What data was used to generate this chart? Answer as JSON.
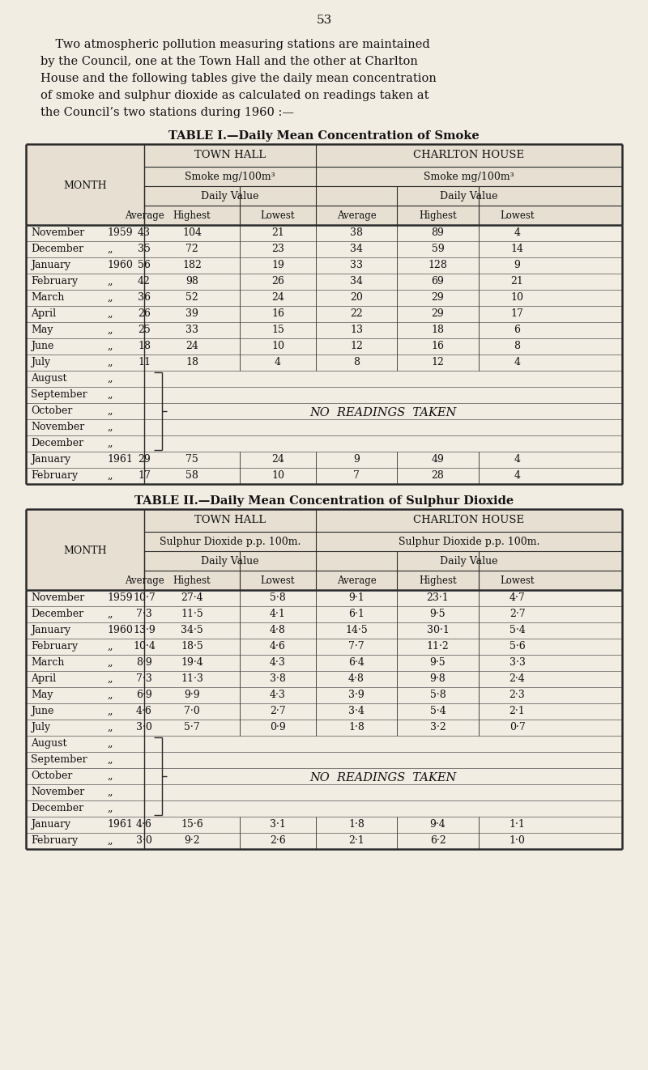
{
  "page_number": "53",
  "intro_text": [
    "    Two atmospheric pollution measuring stations are maintained",
    "by the Council, one at the Town Hall and the other at Charlton",
    "House and the following tables give the daily mean concentration",
    "of smoke and sulphur dioxide as calculated on readings taken at",
    "the Council’s two stations during 1960 :—"
  ],
  "table1_title": "TABLE I.—Daily Mean Concentration of Smoke",
  "table2_title": "TABLE II.—Daily Mean Concentration of Sulphur Dioxide",
  "table1_rows": [
    {
      "month": "November",
      "year": "1959",
      "th_avg": "43",
      "th_high": "104",
      "th_low": "21",
      "ch_avg": "38",
      "ch_high": "89",
      "ch_low": "4"
    },
    {
      "month": "December",
      "year": "„",
      "th_avg": "35",
      "th_high": "72",
      "th_low": "23",
      "ch_avg": "34",
      "ch_high": "59",
      "ch_low": "14"
    },
    {
      "month": "January",
      "year": "1960",
      "th_avg": "56",
      "th_high": "182",
      "th_low": "19",
      "ch_avg": "33",
      "ch_high": "128",
      "ch_low": "9"
    },
    {
      "month": "February",
      "year": "„",
      "th_avg": "42",
      "th_high": "98",
      "th_low": "26",
      "ch_avg": "34",
      "ch_high": "69",
      "ch_low": "21"
    },
    {
      "month": "March",
      "year": "„",
      "th_avg": "36",
      "th_high": "52",
      "th_low": "24",
      "ch_avg": "20",
      "ch_high": "29",
      "ch_low": "10"
    },
    {
      "month": "April",
      "year": "„",
      "th_avg": "26",
      "th_high": "39",
      "th_low": "16",
      "ch_avg": "22",
      "ch_high": "29",
      "ch_low": "17"
    },
    {
      "month": "May",
      "year": "„",
      "th_avg": "25",
      "th_high": "33",
      "th_low": "15",
      "ch_avg": "13",
      "ch_high": "18",
      "ch_low": "6"
    },
    {
      "month": "June",
      "year": "„",
      "th_avg": "18",
      "th_high": "24",
      "th_low": "10",
      "ch_avg": "12",
      "ch_high": "16",
      "ch_low": "8"
    },
    {
      "month": "July",
      "year": "„",
      "th_avg": "11",
      "th_high": "18",
      "th_low": "4",
      "ch_avg": "8",
      "ch_high": "12",
      "ch_low": "4"
    },
    {
      "month": "August",
      "year": "„",
      "th_avg": null,
      "th_high": null,
      "th_low": null,
      "ch_avg": null,
      "ch_high": null,
      "ch_low": null
    },
    {
      "month": "September",
      "year": "„",
      "th_avg": null,
      "th_high": null,
      "th_low": null,
      "ch_avg": null,
      "ch_high": null,
      "ch_low": null
    },
    {
      "month": "October",
      "year": "„",
      "th_avg": null,
      "th_high": null,
      "th_low": null,
      "ch_avg": null,
      "ch_high": null,
      "ch_low": null
    },
    {
      "month": "November",
      "year": "„",
      "th_avg": null,
      "th_high": null,
      "th_low": null,
      "ch_avg": null,
      "ch_high": null,
      "ch_low": null
    },
    {
      "month": "December",
      "year": "„",
      "th_avg": null,
      "th_high": null,
      "th_low": null,
      "ch_avg": null,
      "ch_high": null,
      "ch_low": null
    },
    {
      "month": "January",
      "year": "1961",
      "th_avg": "29",
      "th_high": "75",
      "th_low": "24",
      "ch_avg": "9",
      "ch_high": "49",
      "ch_low": "4"
    },
    {
      "month": "February",
      "year": "„",
      "th_avg": "17",
      "th_high": "58",
      "th_low": "10",
      "ch_avg": "7",
      "ch_high": "28",
      "ch_low": "4"
    }
  ],
  "table2_rows": [
    {
      "month": "November",
      "year": "1959",
      "th_avg": "10·7",
      "th_high": "27·4",
      "th_low": "5·8",
      "ch_avg": "9·1",
      "ch_high": "23·1",
      "ch_low": "4·7"
    },
    {
      "month": "December",
      "year": "„",
      "th_avg": "7·3",
      "th_high": "11·5",
      "th_low": "4·1",
      "ch_avg": "6·1",
      "ch_high": "9·5",
      "ch_low": "2·7"
    },
    {
      "month": "January",
      "year": "1960",
      "th_avg": "13·9",
      "th_high": "34·5",
      "th_low": "4·8",
      "ch_avg": "14·5",
      "ch_high": "30·1",
      "ch_low": "5·4"
    },
    {
      "month": "February",
      "year": "„",
      "th_avg": "10·4",
      "th_high": "18·5",
      "th_low": "4·6",
      "ch_avg": "7·7",
      "ch_high": "11·2",
      "ch_low": "5·6"
    },
    {
      "month": "March",
      "year": "„",
      "th_avg": "8·9",
      "th_high": "19·4",
      "th_low": "4·3",
      "ch_avg": "6·4",
      "ch_high": "9·5",
      "ch_low": "3·3"
    },
    {
      "month": "April",
      "year": "„",
      "th_avg": "7·3",
      "th_high": "11·3",
      "th_low": "3·8",
      "ch_avg": "4·8",
      "ch_high": "9·8",
      "ch_low": "2·4"
    },
    {
      "month": "May",
      "year": "„",
      "th_avg": "6·9",
      "th_high": "9·9",
      "th_low": "4·3",
      "ch_avg": "3·9",
      "ch_high": "5·8",
      "ch_low": "2·3"
    },
    {
      "month": "June",
      "year": "„",
      "th_avg": "4·6",
      "th_high": "7·0",
      "th_low": "2·7",
      "ch_avg": "3·4",
      "ch_high": "5·4",
      "ch_low": "2·1"
    },
    {
      "month": "July",
      "year": "„",
      "th_avg": "3·0",
      "th_high": "5·7",
      "th_low": "0·9",
      "ch_avg": "1·8",
      "ch_high": "3·2",
      "ch_low": "0·7"
    },
    {
      "month": "August",
      "year": "„",
      "th_avg": null,
      "th_high": null,
      "th_low": null,
      "ch_avg": null,
      "ch_high": null,
      "ch_low": null
    },
    {
      "month": "September",
      "year": "„",
      "th_avg": null,
      "th_high": null,
      "th_low": null,
      "ch_avg": null,
      "ch_high": null,
      "ch_low": null
    },
    {
      "month": "October",
      "year": "„",
      "th_avg": null,
      "th_high": null,
      "th_low": null,
      "ch_avg": null,
      "ch_high": null,
      "ch_low": null
    },
    {
      "month": "November",
      "year": "„",
      "th_avg": null,
      "th_high": null,
      "th_low": null,
      "ch_avg": null,
      "ch_high": null,
      "ch_low": null
    },
    {
      "month": "December",
      "year": "„",
      "th_avg": null,
      "th_high": null,
      "th_low": null,
      "ch_avg": null,
      "ch_high": null,
      "ch_low": null
    },
    {
      "month": "January",
      "year": "1961",
      "th_avg": "4·6",
      "th_high": "15·6",
      "th_low": "3·1",
      "ch_avg": "1·8",
      "ch_high": "9·4",
      "ch_low": "1·1"
    },
    {
      "month": "February",
      "year": "„",
      "th_avg": "3·0",
      "th_high": "9·2",
      "th_low": "2·6",
      "ch_avg": "2·1",
      "ch_high": "6·2",
      "ch_low": "1·0"
    }
  ],
  "no_readings_rows": [
    9,
    10,
    11,
    12,
    13
  ],
  "bg_color": "#f2ede3",
  "header_bg": "#e6dfd2",
  "line_color": "#2a2a2a"
}
